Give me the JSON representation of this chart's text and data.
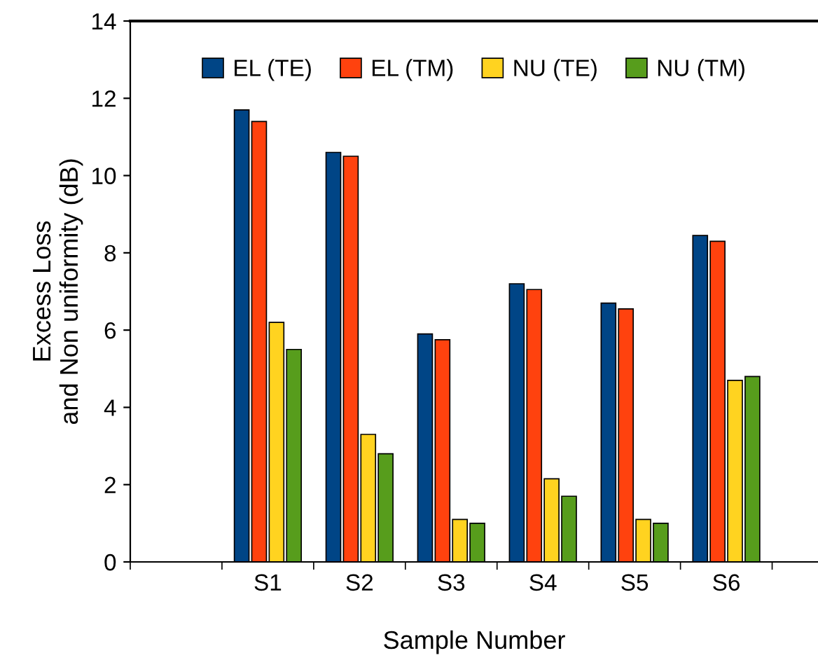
{
  "chart_data": {
    "type": "bar",
    "xlabel": "Sample Number",
    "ylabel": "Excess Loss\nand Non uniformity (dB)",
    "categories": [
      null,
      "S1",
      "S2",
      "S3",
      "S4",
      "S5",
      "S6"
    ],
    "series": [
      {
        "name": "EL (TE)",
        "color": "#004586",
        "values": [
          null,
          11.7,
          10.6,
          5.9,
          7.2,
          6.7,
          8.45
        ]
      },
      {
        "name": "EL (TM)",
        "color": "#ff420e",
        "values": [
          null,
          11.4,
          10.5,
          5.75,
          7.05,
          6.55,
          8.3
        ]
      },
      {
        "name": "NU (TE)",
        "color": "#ffd320",
        "values": [
          null,
          6.2,
          3.3,
          1.1,
          2.15,
          1.1,
          4.7
        ]
      },
      {
        "name": "NU (TM)",
        "color": "#579d1c",
        "values": [
          null,
          5.5,
          2.8,
          1.0,
          1.7,
          1.0,
          4.8
        ]
      }
    ],
    "ylim": [
      0,
      14
    ],
    "yticks": [
      0,
      2,
      4,
      6,
      8,
      10,
      12,
      14
    ],
    "grid": false,
    "legend": "top"
  }
}
